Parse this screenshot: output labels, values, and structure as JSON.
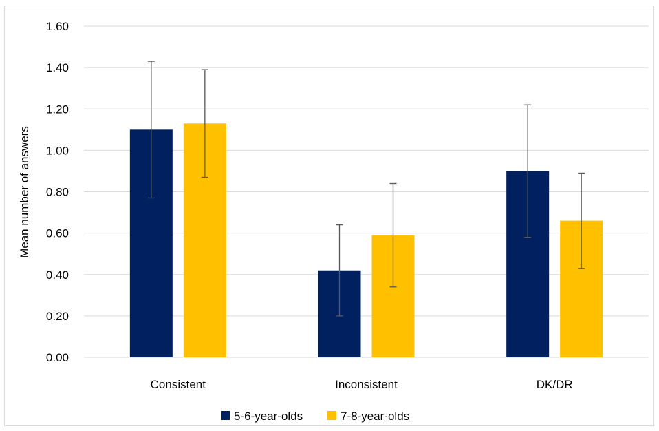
{
  "chart_data": {
    "type": "bar",
    "title": "",
    "xlabel": "",
    "ylabel": "Mean number of answers",
    "categories": [
      "Consistent",
      "Inconsistent",
      "DK/DR"
    ],
    "ylim": [
      0,
      1.6
    ],
    "yticks": [
      "0.00",
      "0.20",
      "0.40",
      "0.60",
      "0.80",
      "1.00",
      "1.20",
      "1.40",
      "1.60"
    ],
    "grid": true,
    "legend_position": "bottom",
    "series": [
      {
        "name": "5-6-year-olds",
        "color": "#002060",
        "values": [
          1.1,
          0.42,
          0.9
        ],
        "error_low": [
          0.77,
          0.2,
          0.58
        ],
        "error_high": [
          1.43,
          0.64,
          1.22
        ]
      },
      {
        "name": "7-8-year-olds",
        "color": "#FFC000",
        "values": [
          1.13,
          0.59,
          0.66
        ],
        "error_low": [
          0.87,
          0.34,
          0.43
        ],
        "error_high": [
          1.39,
          0.84,
          0.89
        ]
      }
    ]
  }
}
